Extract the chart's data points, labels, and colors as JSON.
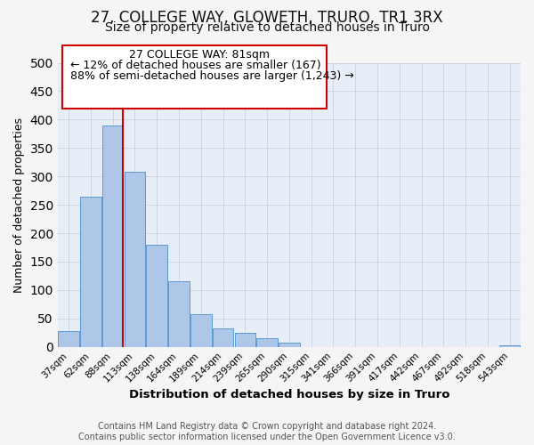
{
  "title": "27, COLLEGE WAY, GLOWETH, TRURO, TR1 3RX",
  "subtitle": "Size of property relative to detached houses in Truro",
  "xlabel": "Distribution of detached houses by size in Truro",
  "ylabel": "Number of detached properties",
  "categories": [
    "37sqm",
    "62sqm",
    "88sqm",
    "113sqm",
    "138sqm",
    "164sqm",
    "189sqm",
    "214sqm",
    "239sqm",
    "265sqm",
    "290sqm",
    "315sqm",
    "341sqm",
    "366sqm",
    "391sqm",
    "417sqm",
    "442sqm",
    "467sqm",
    "492sqm",
    "518sqm",
    "543sqm"
  ],
  "values": [
    28,
    265,
    390,
    308,
    180,
    115,
    58,
    32,
    25,
    15,
    7,
    0,
    0,
    0,
    0,
    0,
    0,
    0,
    0,
    0,
    2
  ],
  "bar_color": "#aec6e8",
  "bar_edge_color": "#5b9bd5",
  "vline_color": "#cc0000",
  "vline_x": 2.45,
  "ylim": [
    0,
    500
  ],
  "yticks": [
    0,
    50,
    100,
    150,
    200,
    250,
    300,
    350,
    400,
    450,
    500
  ],
  "grid_color": "#cdd5e3",
  "background_color": "#e8eef8",
  "fig_background": "#f5f5f5",
  "ann_line1": "27 COLLEGE WAY: 81sqm",
  "ann_line2": "← 12% of detached houses are smaller (167)",
  "ann_line3": "88% of semi-detached houses are larger (1,243) →",
  "footer_text": "Contains HM Land Registry data © Crown copyright and database right 2024.\nContains public sector information licensed under the Open Government Licence v3.0.",
  "title_fontsize": 12,
  "subtitle_fontsize": 10,
  "xlabel_fontsize": 9.5,
  "ylabel_fontsize": 9,
  "annotation_fontsize": 9,
  "tick_fontsize": 7.5,
  "footer_fontsize": 7
}
